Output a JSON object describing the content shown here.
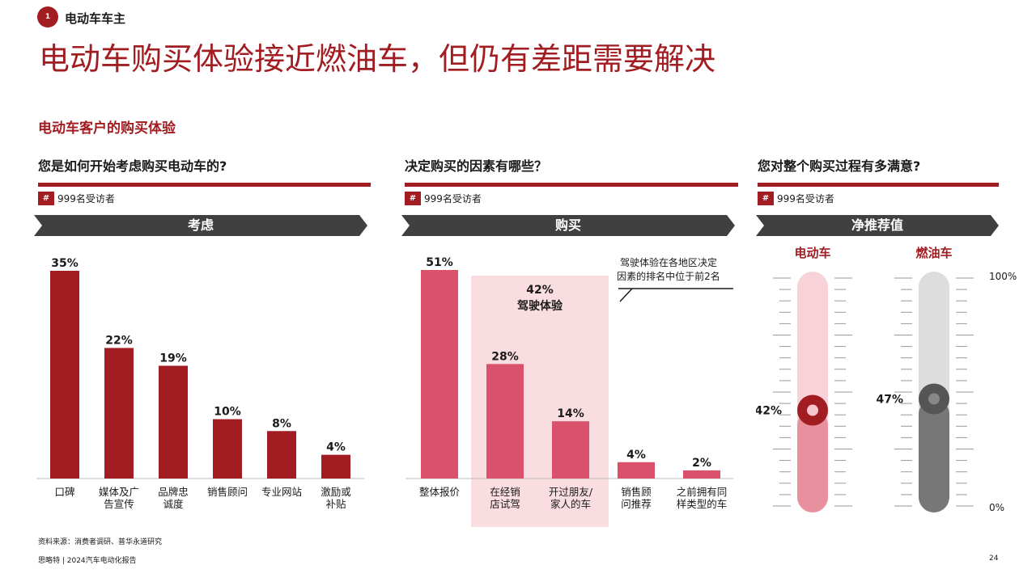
{
  "header": {
    "section_number": "1",
    "section_label": "电动车车主",
    "title": "电动车购买体验接近燃油车，但仍有差距需要解决",
    "subtitle": "电动车客户的购买体验"
  },
  "panels": [
    {
      "question": "您是如何开始考虑购买电动车的?",
      "respondents_badge": "#",
      "respondents": "999名受访者",
      "stage": "考虑"
    },
    {
      "question": "决定购买的因素有哪些？",
      "respondents_badge": "#",
      "respondents": "999名受访者",
      "stage": "购买"
    },
    {
      "question": "您对整个购买过程有多满意?",
      "respondents_badge": "#",
      "respondents": "999名受访者",
      "stage": "净推荐值"
    }
  ],
  "highlight": {
    "value_label": "42%",
    "label": "驾驶体验"
  },
  "callout": {
    "line1": "驾驶体验在各地区决定",
    "line2": "因素的排名中位于前2名"
  },
  "colors": {
    "dark_red": "#a11d22",
    "pink_red": "#d9516b",
    "highlight_bg": "#fadde1",
    "gauge_ev_track": "#f7d2d8",
    "gauge_ev_fill": "#e8909d",
    "gauge_ice_track": "#dddddd",
    "gauge_ice_fill": "#777777",
    "chevron": "#404040"
  },
  "chart_data": [
    {
      "type": "bar",
      "categories": [
        [
          "口碑"
        ],
        [
          "媒体及广",
          "告宣传"
        ],
        [
          "品牌忠",
          "诚度"
        ],
        [
          "销售顾问"
        ],
        [
          "专业网站"
        ],
        [
          "激励或",
          "补贴"
        ]
      ],
      "values": [
        35,
        22,
        19,
        10,
        8,
        4
      ],
      "value_labels": [
        "35%",
        "22%",
        "19%",
        "10%",
        "8%",
        "4%"
      ],
      "ylim": [
        0,
        35
      ],
      "color": "#a11d22"
    },
    {
      "type": "bar",
      "categories": [
        [
          "整体报价"
        ],
        [
          "在经销",
          "店试驾"
        ],
        [
          "开过朋友/",
          "家人的车"
        ],
        [
          "销售顾",
          "问推荐"
        ],
        [
          "之前拥有同",
          "样类型的车"
        ]
      ],
      "values": [
        51,
        28,
        14,
        4,
        2
      ],
      "value_labels": [
        "51%",
        "28%",
        "14%",
        "4%",
        "2%"
      ],
      "ylim": [
        0,
        51
      ],
      "color": "#d9516b"
    },
    {
      "type": "gauge",
      "series": [
        {
          "name": "电动车",
          "value": 42,
          "value_label": "42%"
        },
        {
          "name": "燃油车",
          "value": 47,
          "value_label": "47%"
        }
      ],
      "scale_labels": {
        "max": "100%",
        "min": "0%"
      },
      "ylim": [
        0,
        100
      ]
    }
  ],
  "footer": {
    "source": "资料来源：消费者调研、普华永道研究",
    "report": "思略特 | 2024汽车电动化报告",
    "page_number": "24"
  }
}
